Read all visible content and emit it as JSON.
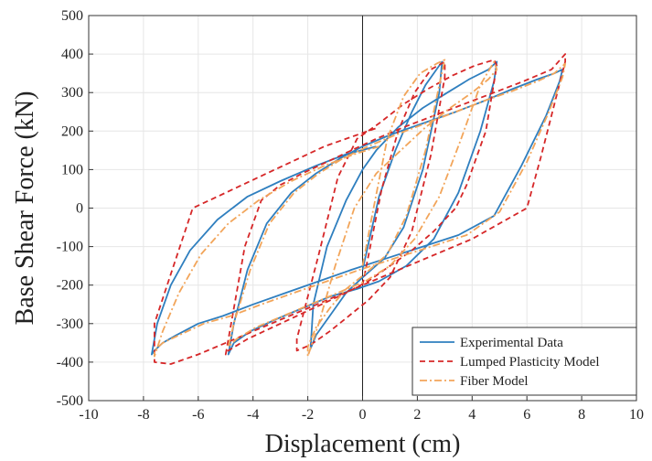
{
  "chart_data": {
    "type": "line",
    "title": "",
    "xlabel": "Displacement (cm)",
    "ylabel": "Base Shear Force (kN)",
    "xlim": [
      -10,
      10
    ],
    "ylim": [
      -500,
      500
    ],
    "xticks": [
      -10,
      -8,
      -6,
      -4,
      -2,
      0,
      2,
      4,
      6,
      8,
      10
    ],
    "yticks": [
      -500,
      -400,
      -300,
      -200,
      -100,
      0,
      100,
      200,
      300,
      400,
      500
    ],
    "grid": true,
    "legend_position": "bottom-right",
    "series": [
      {
        "name": "Experimental Data",
        "color": "#2f7fbf",
        "style": "solid",
        "x": [
          0,
          0.6,
          1.2,
          1.8,
          2.3,
          2.7,
          2.9,
          2.8,
          2.2,
          1.5,
          0.8,
          0,
          -0.6,
          -1.2,
          -1.7,
          -1.9,
          -1.8,
          -1.3,
          -0.6,
          0,
          0.5,
          1.3,
          2.2,
          3.1,
          3.9,
          4.6,
          4.9,
          4.8,
          4.3,
          3.5,
          2.6,
          1.6,
          0.6,
          -0.2,
          -1.2,
          -2.2,
          -3.2,
          -4.1,
          -4.7,
          -4.9,
          -4.7,
          -4.2,
          -3.5,
          -2.6,
          -1.7,
          -0.8,
          0,
          1,
          2.2,
          3.4,
          4.5,
          5.5,
          6.4,
          7,
          7.3,
          7.2,
          6.7,
          5.8,
          4.8,
          3.5,
          2.2,
          0.9,
          -0.4,
          -1.6,
          -2.8,
          -4,
          -5.1,
          -6,
          -6.8,
          -7.3,
          -7.6,
          -7.7,
          -7.5,
          -7,
          -6.3,
          -5.3,
          -4.2,
          -3,
          -1.7,
          -0.6,
          0.5
        ],
        "y": [
          -160,
          30,
          150,
          250,
          320,
          360,
          380,
          300,
          100,
          -50,
          -130,
          -180,
          -220,
          -280,
          -330,
          -365,
          -250,
          -100,
          20,
          100,
          150,
          210,
          260,
          300,
          335,
          360,
          380,
          330,
          200,
          40,
          -80,
          -150,
          -190,
          -210,
          -230,
          -260,
          -290,
          -320,
          -350,
          -380,
          -300,
          -160,
          -40,
          40,
          90,
          130,
          160,
          190,
          220,
          250,
          280,
          310,
          335,
          350,
          360,
          330,
          240,
          110,
          -20,
          -70,
          -100,
          -130,
          -160,
          -190,
          -220,
          -250,
          -280,
          -300,
          -330,
          -350,
          -370,
          -380,
          -300,
          -200,
          -110,
          -30,
          30,
          70,
          110,
          140,
          160
        ]
      },
      {
        "name": "Lumped Plasticity Model",
        "color": "#d62728",
        "style": "dashed",
        "x": [
          0,
          0.7,
          1.3,
          1.9,
          2.5,
          3,
          3,
          2.5,
          1.8,
          1,
          0.2,
          -0.5,
          -1.2,
          -1.9,
          -2.4,
          -2.4,
          -1.6,
          -0.9,
          -0.2,
          0.6,
          1.5,
          2.4,
          3.3,
          4.1,
          4.8,
          4.9,
          4.5,
          3.8,
          3.4,
          2.6,
          1.8,
          1,
          0.2,
          -0.6,
          -1.5,
          -2.4,
          -3.3,
          -4.2,
          -4.9,
          -5,
          -4.3,
          -3.7,
          -3,
          -2.2,
          -1.3,
          -0.4,
          0.5,
          1.5,
          2.6,
          3.7,
          4.8,
          5.9,
          6.9,
          7.4,
          7.4,
          6.5,
          6,
          5,
          4,
          3,
          2,
          1,
          0,
          -1,
          -2,
          -3,
          -4,
          -5,
          -6,
          -7,
          -7.6,
          -7.6,
          -6.9,
          -6.2,
          -5,
          -3.8,
          -2.6,
          -1.4,
          -0.2,
          0.6
        ],
        "y": [
          -200,
          50,
          200,
          300,
          360,
          380,
          340,
          140,
          -60,
          -180,
          -240,
          -280,
          -320,
          -355,
          -370,
          -340,
          -120,
          80,
          180,
          220,
          270,
          310,
          345,
          370,
          385,
          370,
          200,
          60,
          0,
          -60,
          -110,
          -150,
          -190,
          -220,
          -250,
          -280,
          -310,
          -340,
          -370,
          -380,
          -100,
          20,
          60,
          90,
          120,
          150,
          180,
          210,
          240,
          270,
          300,
          330,
          360,
          400,
          380,
          130,
          0,
          -40,
          -80,
          -110,
          -140,
          -170,
          -200,
          -230,
          -260,
          -290,
          -320,
          -350,
          -380,
          -405,
          -400,
          -300,
          -150,
          0,
          40,
          80,
          120,
          160,
          190,
          210
        ]
      },
      {
        "name": "Fiber Model",
        "color": "#f2a55a",
        "style": "dashdot",
        "x": [
          0,
          0.4,
          0.9,
          1.5,
          2.1,
          2.7,
          3,
          2.8,
          2.3,
          1.6,
          0.9,
          0.1,
          -0.6,
          -1.2,
          -1.7,
          -2,
          -2,
          -1.6,
          -1,
          -0.3,
          0.5,
          1.4,
          2.3,
          3.2,
          4,
          4.6,
          4.9,
          4.8,
          4.3,
          3.6,
          2.8,
          1.9,
          1,
          0.1,
          -0.9,
          -1.9,
          -2.9,
          -3.9,
          -4.6,
          -4.9,
          -4.7,
          -4.1,
          -3.4,
          -2.5,
          -1.6,
          -0.7,
          0.2,
          1.2,
          2.3,
          3.4,
          4.5,
          5.5,
          6.4,
          7,
          7.4,
          7.3,
          6.8,
          6,
          5,
          3.8,
          2.5,
          1.2,
          -0.1,
          -1.3,
          -2.5,
          -3.7,
          -4.8,
          -5.8,
          -6.7,
          -7.3,
          -7.6,
          -7.6,
          -7.3,
          -6.7,
          -5.9,
          -4.9,
          -3.8,
          -2.6,
          -1.4,
          -0.3,
          0.6
        ],
        "y": [
          -150,
          0,
          180,
          290,
          350,
          375,
          385,
          320,
          150,
          -20,
          -120,
          -170,
          -210,
          -260,
          -310,
          -360,
          -385,
          -300,
          -150,
          0,
          90,
          150,
          210,
          260,
          300,
          335,
          360,
          380,
          320,
          180,
          30,
          -80,
          -150,
          -190,
          -220,
          -250,
          -280,
          -310,
          -340,
          -360,
          -300,
          -160,
          -40,
          40,
          90,
          130,
          160,
          190,
          220,
          250,
          280,
          305,
          330,
          350,
          375,
          340,
          250,
          120,
          -10,
          -70,
          -100,
          -130,
          -160,
          -190,
          -220,
          -250,
          -280,
          -300,
          -330,
          -350,
          -370,
          -385,
          -320,
          -220,
          -120,
          -40,
          20,
          70,
          110,
          140,
          160
        ]
      }
    ]
  }
}
